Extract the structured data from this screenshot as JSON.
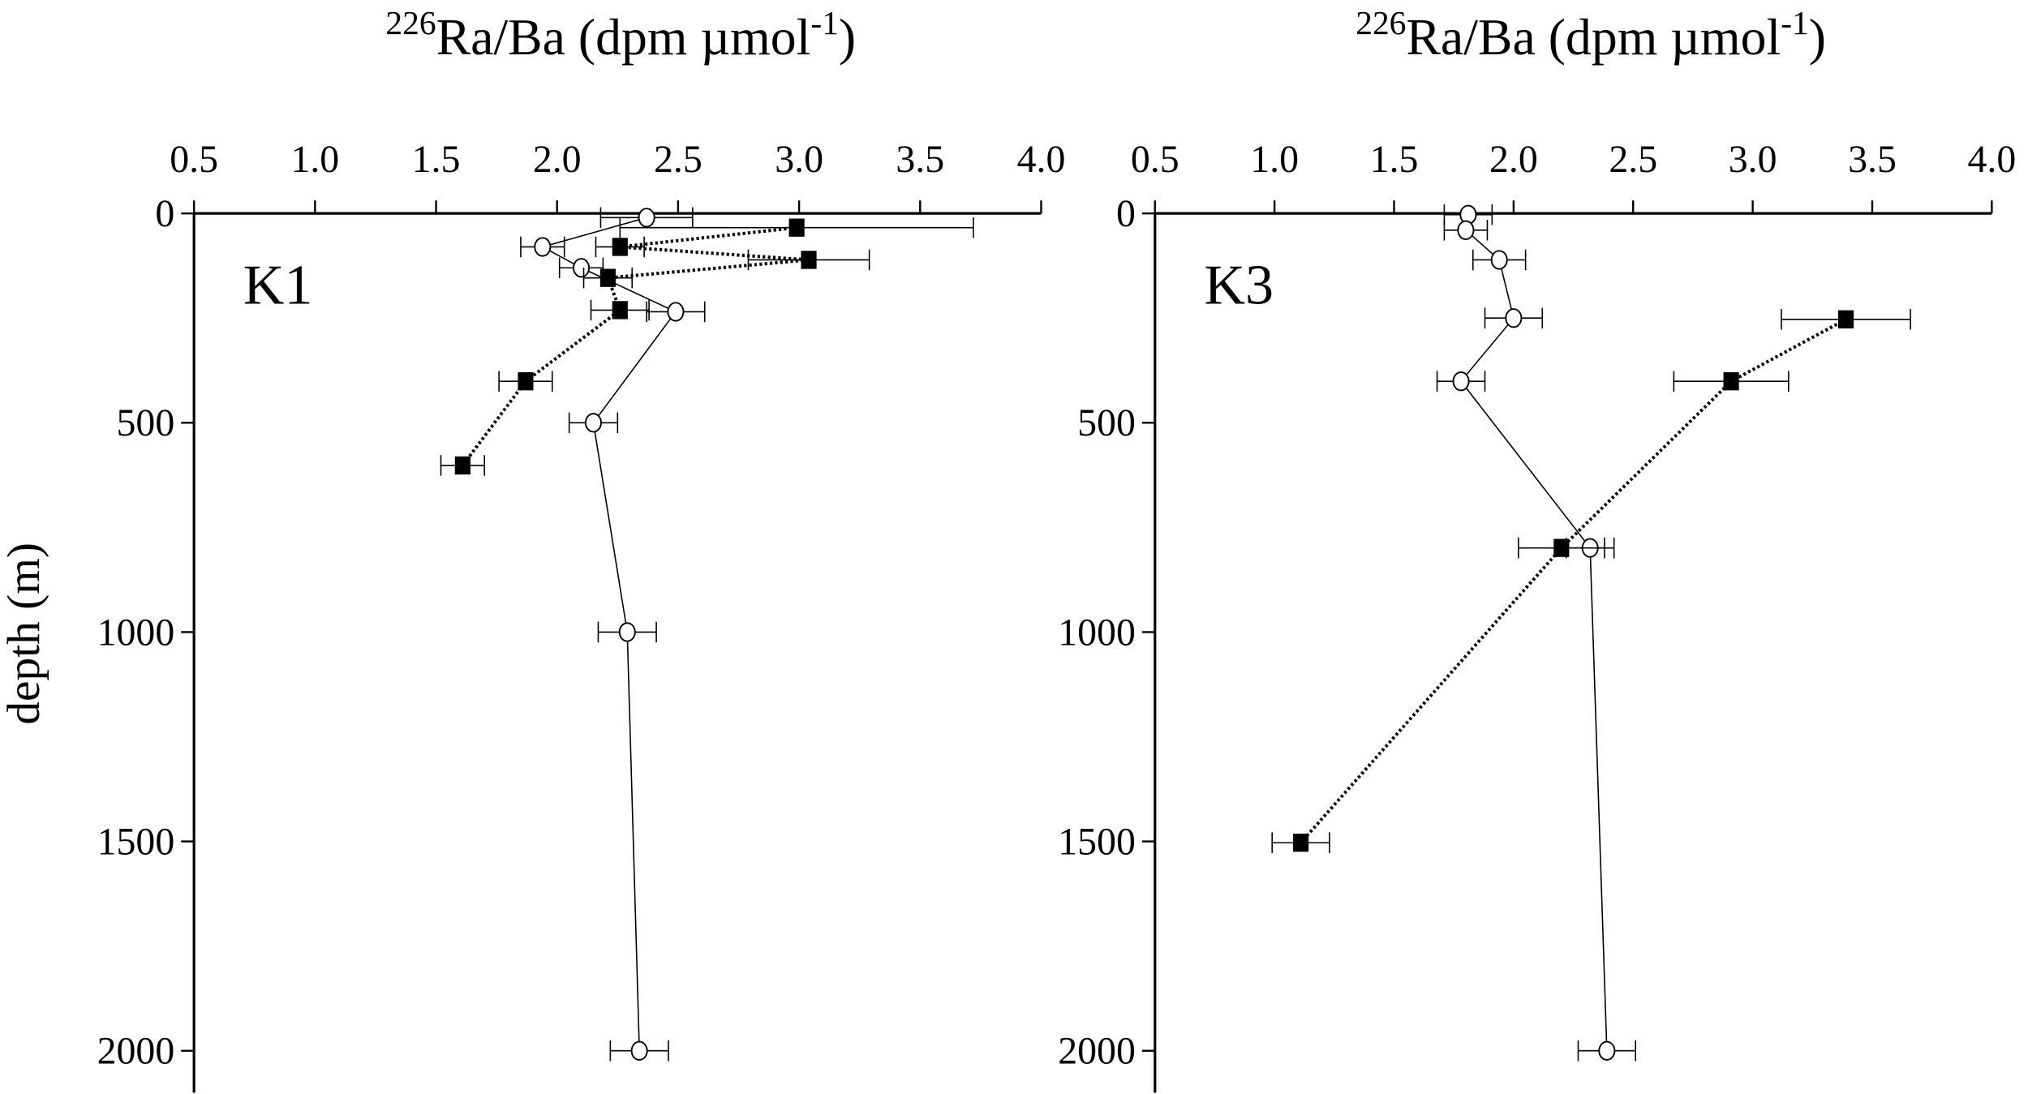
{
  "chart_data": [
    {
      "type": "line",
      "panel_label": "K1",
      "x_label": [
        "226",
        "Ra/Ba (dpm µmol",
        "-1",
        ")"
      ],
      "y_label": "depth (m)",
      "xlim": [
        0.5,
        4.0
      ],
      "ylim": [
        0,
        2100
      ],
      "y_reversed": true,
      "x_axis_top": true,
      "xticks": [
        {
          "value": 0.5,
          "label": "0.5"
        },
        {
          "value": 1.0,
          "label": "1.0"
        },
        {
          "value": 1.5,
          "label": "1.5"
        },
        {
          "value": 2.0,
          "label": "2.0"
        },
        {
          "value": 2.5,
          "label": "2.5"
        },
        {
          "value": 3.0,
          "label": "3.0"
        },
        {
          "value": 3.5,
          "label": "3.5"
        },
        {
          "value": 4.0,
          "label": "4.0"
        }
      ],
      "yticks": [
        0,
        500,
        1000,
        1500,
        2000
      ],
      "series": [
        {
          "marker": "circle",
          "dotted": false,
          "color": "#000000",
          "x": [
            2.37,
            1.94,
            2.1,
            2.49,
            2.15,
            2.29,
            2.34
          ],
          "values": [
            10,
            80,
            130,
            235,
            500,
            1000,
            2000
          ],
          "xerr": [
            0.19,
            0.09,
            0.09,
            0.12,
            0.1,
            0.12,
            0.12
          ]
        },
        {
          "marker": "square",
          "dotted": true,
          "color": "#000000",
          "x": [
            2.99,
            2.26,
            3.04,
            2.21,
            2.26,
            1.87,
            1.61
          ],
          "values": [
            34,
            80,
            111,
            154,
            231,
            401,
            602
          ],
          "xerr": [
            0.73,
            0.1,
            0.25,
            0.1,
            0.12,
            0.11,
            0.09
          ]
        }
      ]
    },
    {
      "type": "line",
      "panel_label": "K3",
      "x_label": [
        "226",
        "Ra/Ba (dpm µmol",
        "-1",
        ")"
      ],
      "xlim": [
        0.5,
        4.0
      ],
      "ylim": [
        0,
        2100
      ],
      "y_reversed": true,
      "x_axis_top": true,
      "xticks": [
        {
          "value": 0.5,
          "label": "0.5"
        },
        {
          "value": 1.0,
          "label": "1.0"
        },
        {
          "value": 1.5,
          "label": "1.5"
        },
        {
          "value": 2.0,
          "label": "2.0"
        },
        {
          "value": 2.5,
          "label": "2.5"
        },
        {
          "value": 3.0,
          "label": "3.0"
        },
        {
          "value": 3.5,
          "label": "3.5"
        },
        {
          "value": 4.0,
          "label": "4.0"
        }
      ],
      "yticks": [
        0,
        500,
        1000,
        1500,
        2000
      ],
      "series": [
        {
          "marker": "circle",
          "dotted": false,
          "color": "#000000",
          "x": [
            1.81,
            1.8,
            1.94,
            2.0,
            1.78,
            2.32,
            2.39
          ],
          "values": [
            3,
            40,
            111,
            250,
            401,
            799,
            2000
          ],
          "xerr": [
            0.1,
            0.09,
            0.11,
            0.12,
            0.1,
            0.1,
            0.12
          ]
        },
        {
          "marker": "square",
          "dotted": true,
          "color": "#000000",
          "x": [
            3.39,
            2.91,
            2.2,
            1.11
          ],
          "values": [
            253,
            401,
            799,
            1503
          ],
          "xerr": [
            0.27,
            0.24,
            0.18,
            0.12
          ]
        }
      ]
    }
  ]
}
